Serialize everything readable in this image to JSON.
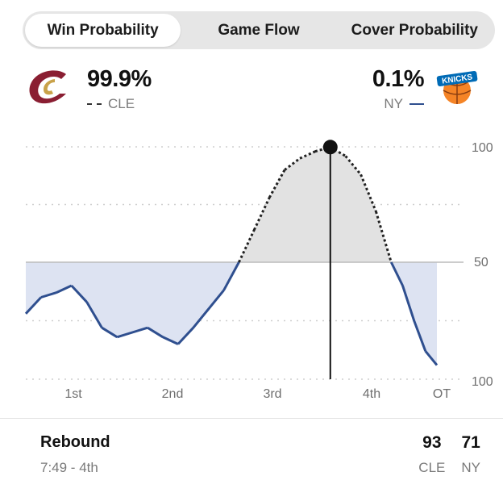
{
  "tabs": [
    {
      "label": "Win Probability",
      "active": true
    },
    {
      "label": "Game Flow",
      "active": false
    },
    {
      "label": "Cover Probability",
      "active": false
    }
  ],
  "home": {
    "pct": "99.9%",
    "abbr": "CLE",
    "logo": "cavaliers-logo",
    "color": "#8a1e32"
  },
  "away": {
    "pct": "0.1%",
    "abbr": "NY",
    "logo": "knicks-logo",
    "color": "#2f4f8f"
  },
  "chart_data": {
    "type": "line",
    "y_ticks": [
      "100",
      "50",
      "100"
    ],
    "x_ticks": [
      "1st",
      "2nd",
      "3rd",
      "4th",
      "OT"
    ],
    "ylim": [
      0,
      100
    ],
    "series": [
      {
        "name": "CLE",
        "style": "dashed",
        "color": "#222222"
      },
      {
        "name": "NY",
        "style": "solid",
        "color": "#2f4f8f"
      }
    ],
    "x": [
      0,
      2,
      4,
      6,
      8,
      10,
      12,
      14,
      16,
      18,
      20,
      22,
      24,
      26,
      28,
      30,
      32,
      34,
      36,
      38,
      40,
      42,
      44,
      46,
      48,
      49.5,
      51,
      52.5,
      54
    ],
    "values": [
      28,
      35,
      37,
      40,
      33,
      22,
      18,
      20,
      22,
      18,
      15,
      22,
      30,
      38,
      50,
      64,
      78,
      90,
      95,
      98,
      99.9,
      96,
      88,
      72,
      50,
      40,
      25,
      12,
      6
    ],
    "marker": {
      "x": 40,
      "y": 99.9
    }
  },
  "play": {
    "title": "Rebound",
    "time": "7:49 - 4th"
  },
  "score": {
    "home": "93",
    "away": "71",
    "home_abbr": "CLE",
    "away_abbr": "NY"
  }
}
